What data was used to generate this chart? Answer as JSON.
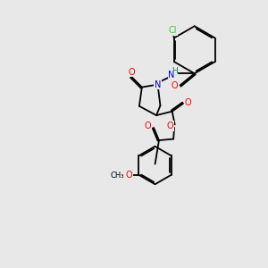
{
  "background_color": "#e8e8e8",
  "bond_color": "#000000",
  "atom_colors": {
    "N": "#0000cc",
    "O": "#ff0000",
    "Cl": "#33cc33",
    "H": "#008080",
    "C": "#000000"
  },
  "figsize": [
    3.0,
    3.0
  ],
  "dpi": 100
}
